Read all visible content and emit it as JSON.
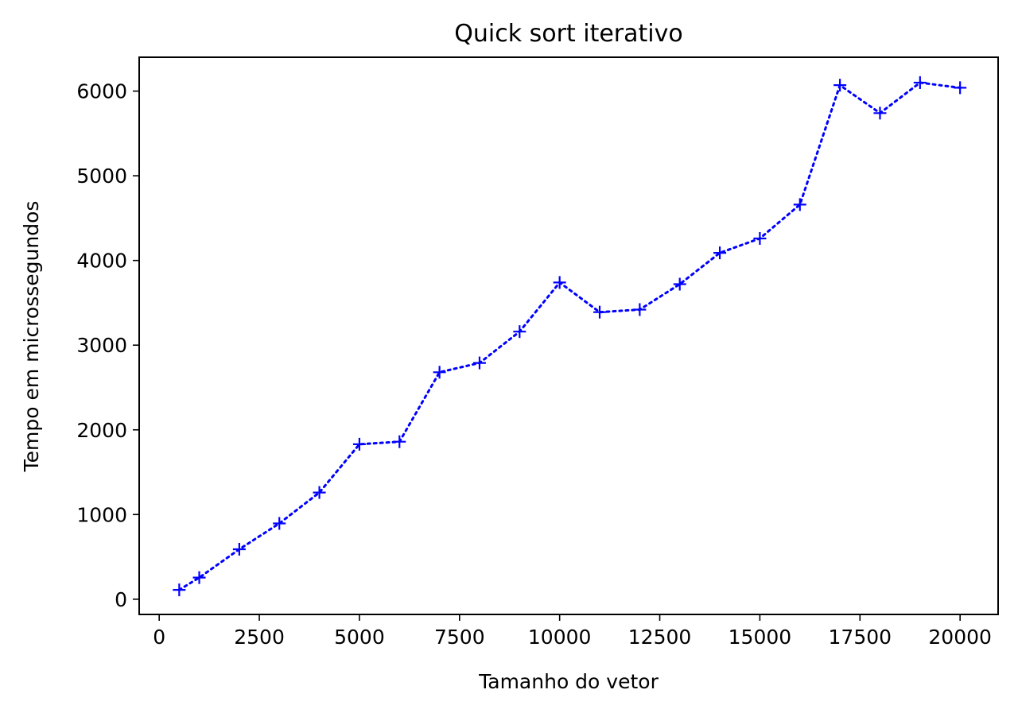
{
  "chart_data": {
    "type": "line",
    "title": "Quick sort iterativo",
    "xlabel": "Tamanho do vetor",
    "ylabel": "Tempo em microssegundos",
    "xlim": [
      -500,
      20950
    ],
    "ylim": [
      -180,
      6400
    ],
    "xticks": [
      0,
      2500,
      5000,
      7500,
      10000,
      12500,
      15000,
      17500,
      20000
    ],
    "yticks": [
      0,
      1000,
      2000,
      3000,
      4000,
      5000,
      6000
    ],
    "grid": false,
    "series": [
      {
        "color": "#0000ff",
        "line_style": "dotted",
        "marker": "plus",
        "x": [
          500,
          1000,
          2000,
          3000,
          4000,
          5000,
          6000,
          7000,
          8000,
          9000,
          10000,
          11000,
          12000,
          13000,
          14000,
          15000,
          16000,
          17000,
          18000,
          19000,
          20000
        ],
        "y": [
          110,
          255,
          590,
          895,
          1260,
          1830,
          1860,
          2680,
          2790,
          3160,
          3740,
          3390,
          3420,
          3720,
          4090,
          4260,
          4660,
          6070,
          5740,
          6100,
          6040
        ]
      }
    ]
  }
}
